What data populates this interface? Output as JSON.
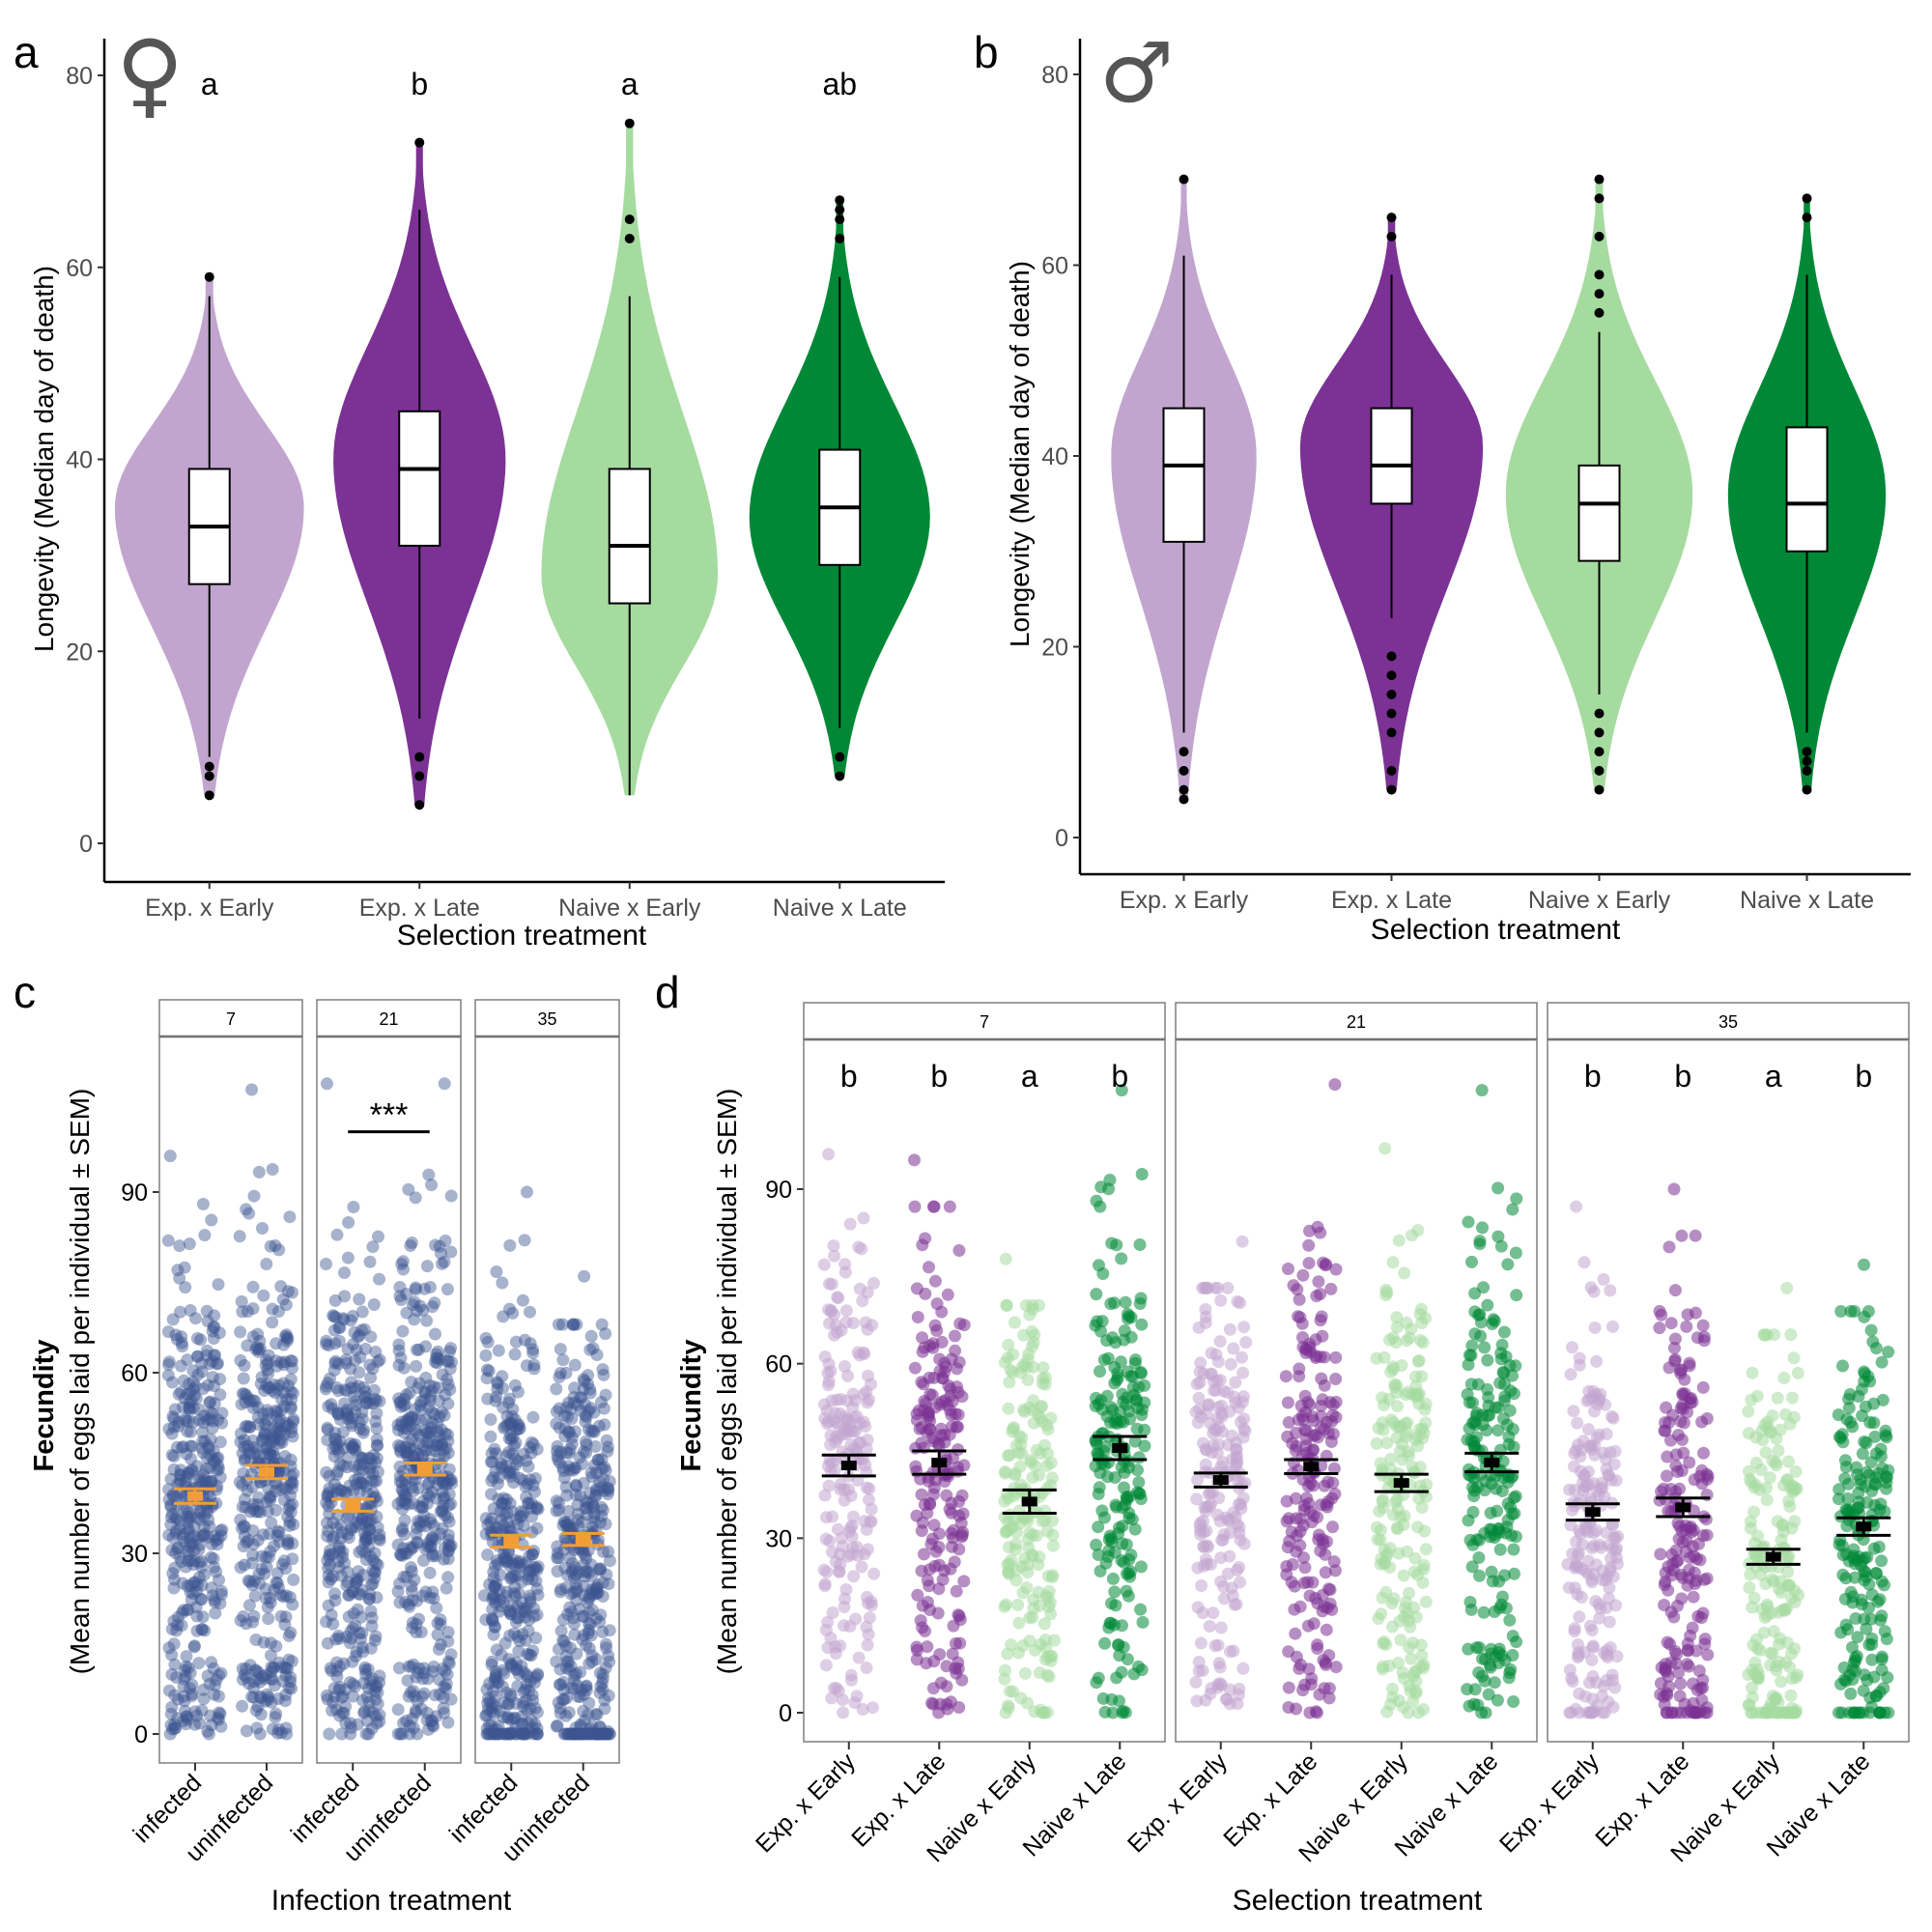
{
  "colors": {
    "exp_early": "#c2a5cf",
    "exp_late": "#7b3294",
    "naive_early": "#a6dba0",
    "naive_late": "#008837",
    "infection_points": "#3b5491",
    "infection_mean": "#f29d35",
    "axis": "#000000",
    "tick_text": "#4d4d4d",
    "strip_border": "#7f7f7f"
  },
  "chart_data": [
    {
      "panel": "a",
      "type": "violin+box",
      "panel_label": "a",
      "sex_symbol": "♀",
      "sex": "female",
      "xlabel": "Selection treatment",
      "ylabel": "Longevity (Median day of death)",
      "ylim": [
        -4,
        84
      ],
      "yticks": [
        0,
        20,
        40,
        60,
        80
      ],
      "categories": [
        "Exp. x Early",
        "Exp. x Late",
        "Naive x Early",
        "Naive x Late"
      ],
      "series": [
        {
          "name": "Exp. x Early",
          "color_key": "exp_early",
          "letter": "a",
          "min": 9,
          "q1": 27,
          "median": 33,
          "q3": 39,
          "max": 57,
          "outliers": [
            5,
            7,
            8,
            59
          ],
          "violin_range": [
            5,
            59
          ],
          "violin_mode": 35,
          "violin_width": 0.9
        },
        {
          "name": "Exp. x Late",
          "color_key": "exp_late",
          "letter": "b",
          "min": 13,
          "q1": 31,
          "median": 39,
          "q3": 45,
          "max": 66,
          "outliers": [
            4,
            7,
            9,
            73
          ],
          "violin_range": [
            4,
            73
          ],
          "violin_mode": 40,
          "violin_width": 0.82
        },
        {
          "name": "Naive x Early",
          "color_key": "naive_early",
          "letter": "a",
          "min": 5,
          "q1": 25,
          "median": 31,
          "q3": 39,
          "max": 57,
          "outliers": [
            63,
            65,
            75
          ],
          "violin_range": [
            5,
            75
          ],
          "violin_mode": 28,
          "violin_width": 0.84
        },
        {
          "name": "Naive x Late",
          "color_key": "naive_late",
          "letter": "ab",
          "min": 12,
          "q1": 29,
          "median": 35,
          "q3": 41,
          "max": 59,
          "outliers": [
            7,
            9,
            63,
            65,
            66,
            67
          ],
          "violin_range": [
            7,
            67
          ],
          "violin_mode": 34,
          "violin_width": 0.86
        }
      ]
    },
    {
      "panel": "b",
      "type": "violin+box",
      "panel_label": "b",
      "sex_symbol": "♂",
      "sex": "male",
      "xlabel": "Selection treatment",
      "ylabel": "Longevity (Median day of death)",
      "ylim": [
        -4,
        84
      ],
      "yticks": [
        0,
        20,
        40,
        60,
        80
      ],
      "categories": [
        "Exp. x Early",
        "Exp. x Late",
        "Naive x Early",
        "Naive x Late"
      ],
      "series": [
        {
          "name": "Exp. x Early",
          "color_key": "exp_early",
          "min": 11,
          "q1": 31,
          "median": 39,
          "q3": 45,
          "max": 61,
          "outliers": [
            4,
            5,
            7,
            9,
            69
          ],
          "violin_range": [
            4,
            69
          ],
          "violin_mode": 40,
          "violin_width": 0.7
        },
        {
          "name": "Exp. x Late",
          "color_key": "exp_late",
          "min": 23,
          "q1": 35,
          "median": 39,
          "q3": 45,
          "max": 59,
          "outliers": [
            5,
            7,
            11,
            13,
            15,
            17,
            19,
            63,
            65
          ],
          "violin_range": [
            5,
            65
          ],
          "violin_mode": 41,
          "violin_width": 0.88
        },
        {
          "name": "Naive x Early",
          "color_key": "naive_early",
          "min": 15,
          "q1": 29,
          "median": 35,
          "q3": 39,
          "max": 53,
          "outliers": [
            5,
            7,
            9,
            11,
            13,
            55,
            57,
            59,
            63,
            67,
            69
          ],
          "violin_range": [
            5,
            69
          ],
          "violin_mode": 36,
          "violin_width": 0.9
        },
        {
          "name": "Naive x Late",
          "color_key": "naive_late",
          "min": 11,
          "q1": 30,
          "median": 35,
          "q3": 43,
          "max": 59,
          "outliers": [
            5,
            7,
            8,
            9,
            65,
            67
          ],
          "violin_range": [
            5,
            67
          ],
          "violin_mode": 36,
          "violin_width": 0.76
        }
      ]
    },
    {
      "panel": "c",
      "type": "scatter",
      "panel_label": "c",
      "xlabel": "Infection treatment",
      "ylabel_bold": "Fecundity",
      "ylabel": "(Mean number of eggs laid per individual ± SEM)",
      "ylim": [
        -7,
        116
      ],
      "yticks": [
        0,
        30,
        60,
        90
      ],
      "facets": [
        "7",
        "21",
        "35"
      ],
      "categories": [
        "infected",
        "uninfected"
      ],
      "significance": {
        "facet": "21",
        "label": "***",
        "y": 100
      },
      "groups": [
        {
          "facet": "7",
          "category": "infected",
          "mean": 39.5,
          "sem": 1.2,
          "max": 96,
          "n_points": 380,
          "zero_heavy": false
        },
        {
          "facet": "7",
          "category": "uninfected",
          "mean": 43.5,
          "sem": 1.1,
          "max": 107,
          "n_points": 380,
          "zero_heavy": false
        },
        {
          "facet": "21",
          "category": "infected",
          "mean": 38,
          "sem": 1.0,
          "max": 108,
          "n_points": 400,
          "zero_heavy": false
        },
        {
          "facet": "21",
          "category": "uninfected",
          "mean": 44,
          "sem": 1.0,
          "max": 108,
          "n_points": 400,
          "zero_heavy": false
        },
        {
          "facet": "35",
          "category": "infected",
          "mean": 32,
          "sem": 1.0,
          "max": 90,
          "n_points": 400,
          "zero_heavy": true
        },
        {
          "facet": "35",
          "category": "uninfected",
          "mean": 32.3,
          "sem": 1.0,
          "max": 76,
          "n_points": 400,
          "zero_heavy": true
        }
      ]
    },
    {
      "panel": "d",
      "type": "scatter",
      "panel_label": "d",
      "xlabel": "Selection treatment",
      "ylabel_bold": "Fecundity",
      "ylabel": "(Mean number of eggs laid per individual ± SEM)",
      "ylim": [
        -5,
        116
      ],
      "yticks": [
        0,
        30,
        60,
        90
      ],
      "facets": [
        "7",
        "21",
        "35"
      ],
      "categories": [
        "Exp. x Early",
        "Exp. x Late",
        "Naive x Early",
        "Naive x Late"
      ],
      "groups": [
        {
          "facet": "7",
          "category": "Exp. x Early",
          "color_key": "exp_early",
          "letter": "b",
          "mean": 42.5,
          "sem": 1.8,
          "max": 96
        },
        {
          "facet": "7",
          "category": "Exp. x Late",
          "color_key": "exp_late",
          "letter": "b",
          "mean": 43,
          "sem": 2.0,
          "max": 95
        },
        {
          "facet": "7",
          "category": "Naive x Early",
          "color_key": "naive_early",
          "letter": "a",
          "mean": 36.3,
          "sem": 2.0,
          "max": 78
        },
        {
          "facet": "7",
          "category": "Naive x Late",
          "color_key": "naive_late",
          "letter": "b",
          "mean": 45.5,
          "sem": 2.0,
          "max": 107
        },
        {
          "facet": "21",
          "category": "Exp. x Early",
          "color_key": "exp_early",
          "letter": "",
          "mean": 40,
          "sem": 1.2,
          "max": 81
        },
        {
          "facet": "21",
          "category": "Exp. x Late",
          "color_key": "exp_late",
          "letter": "",
          "mean": 42.3,
          "sem": 1.2,
          "max": 108
        },
        {
          "facet": "21",
          "category": "Naive x Early",
          "color_key": "naive_early",
          "letter": "",
          "mean": 39.5,
          "sem": 1.5,
          "max": 97
        },
        {
          "facet": "21",
          "category": "Naive x Late",
          "color_key": "naive_late",
          "letter": "",
          "mean": 43,
          "sem": 1.6,
          "max": 107
        },
        {
          "facet": "35",
          "category": "Exp. x Early",
          "color_key": "exp_early",
          "letter": "b",
          "mean": 34.5,
          "sem": 1.4,
          "max": 87
        },
        {
          "facet": "35",
          "category": "Exp. x Late",
          "color_key": "exp_late",
          "letter": "b",
          "mean": 35.3,
          "sem": 1.6,
          "max": 90
        },
        {
          "facet": "35",
          "category": "Naive x Early",
          "color_key": "naive_early",
          "letter": "a",
          "mean": 26.8,
          "sem": 1.3,
          "max": 73
        },
        {
          "facet": "35",
          "category": "Naive x Late",
          "color_key": "naive_late",
          "letter": "b",
          "mean": 32,
          "sem": 1.5,
          "max": 77
        }
      ]
    }
  ]
}
